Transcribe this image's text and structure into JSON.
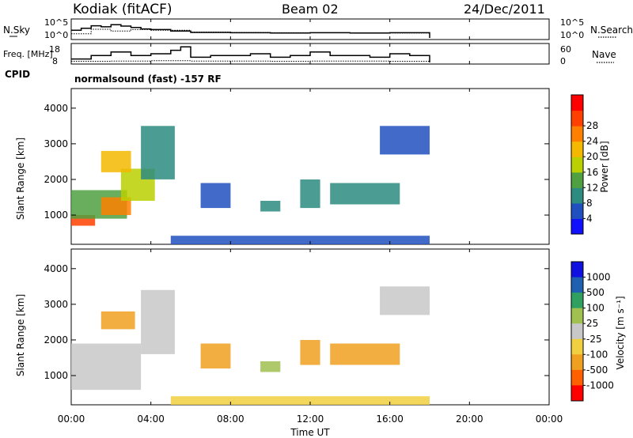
{
  "chart_data": [
    {
      "type": "line",
      "header": {
        "site": "Kodiak (fitACF)",
        "beam": "Beam 02",
        "date": "24/Dec/2011"
      },
      "left_label": "N.Sky",
      "right_label": "N.Search",
      "left_ticks": [
        "10^5",
        "10^0"
      ],
      "right_ticks": [
        "10^5",
        "10^0"
      ],
      "series": [
        {
          "name": "N.Sky",
          "style": "solid",
          "x": [
            0,
            0.5,
            1,
            1.5,
            2,
            2.5,
            3,
            3.5,
            4,
            5,
            6,
            8,
            10,
            12,
            14,
            16,
            18
          ],
          "y": [
            2.2,
            2.8,
            3.5,
            3.2,
            3.8,
            3.4,
            3.0,
            2.6,
            2.4,
            2.0,
            1.6,
            1.5,
            1.4,
            1.5,
            1.4,
            1.5,
            1.4
          ]
        },
        {
          "name": "N.Search",
          "style": "dotted",
          "x": [
            0,
            1,
            2,
            3,
            4,
            6,
            8,
            10,
            12,
            14,
            16,
            18
          ],
          "y": [
            1.2,
            2.5,
            2.0,
            2.4,
            2.2,
            1.7,
            1.6,
            1.5,
            1.5,
            1.4,
            1.4,
            1.3
          ]
        }
      ]
    },
    {
      "type": "line",
      "left_label": "Freq. [MHz]",
      "right_label": "Nave",
      "left_ticks": [
        "18",
        "8"
      ],
      "right_ticks": [
        "60",
        "0"
      ],
      "cpid_label": "CPID",
      "cpid_value": "normalsound (fast) -157 RF",
      "series": [
        {
          "name": "Freq.",
          "style": "solid",
          "x": [
            0,
            1,
            2,
            3,
            4,
            5,
            5.5,
            6,
            7,
            8,
            9,
            10,
            11,
            12,
            13,
            14,
            15,
            16,
            17,
            18
          ],
          "y": [
            10,
            12,
            14,
            12,
            13,
            15,
            17,
            11,
            12,
            12,
            13,
            11,
            12,
            14,
            12,
            12,
            11,
            13,
            12,
            11
          ]
        },
        {
          "name": "Nave",
          "style": "dotted",
          "x": [
            0,
            2,
            4,
            6,
            8,
            10,
            12,
            14,
            16,
            18
          ],
          "y": [
            4,
            5,
            6,
            5,
            5,
            4,
            5,
            5,
            4,
            4
          ]
        }
      ]
    },
    {
      "type": "heatmap",
      "ylabel": "Slant Range [km]",
      "yticks": [
        "1000",
        "2000",
        "3000",
        "4000"
      ],
      "ylim": [
        180,
        4550
      ],
      "xlim": [
        0,
        24
      ],
      "colorbar": {
        "label": "Power [dB]",
        "ticks": [
          "4",
          "8",
          "12",
          "16",
          "20",
          "24",
          "28"
        ],
        "range": [
          0,
          32
        ],
        "colors": [
          "#1010ff",
          "#2050c0",
          "#2c8c80",
          "#4fa040",
          "#bad000",
          "#f4b800",
          "#ff8000",
          "#ff4000",
          "#ff0000"
        ]
      },
      "patches": [
        {
          "x": [
            0,
            1.2
          ],
          "y": [
            700,
            1000
          ],
          "value": 28
        },
        {
          "x": [
            0,
            2.8
          ],
          "y": [
            900,
            1700
          ],
          "value": 14
        },
        {
          "x": [
            1.5,
            3.0
          ],
          "y": [
            1000,
            1500
          ],
          "value": 22
        },
        {
          "x": [
            2.5,
            4.2
          ],
          "y": [
            1400,
            2300
          ],
          "value": 16
        },
        {
          "x": [
            1.5,
            3.0
          ],
          "y": [
            2200,
            2800
          ],
          "value": 18
        },
        {
          "x": [
            3.5,
            5.2
          ],
          "y": [
            2000,
            3500
          ],
          "value": 8
        },
        {
          "x": [
            6.5,
            8.0
          ],
          "y": [
            1200,
            1900
          ],
          "value": 6
        },
        {
          "x": [
            9.5,
            10.5
          ],
          "y": [
            1100,
            1400
          ],
          "value": 8
        },
        {
          "x": [
            11.5,
            12.5
          ],
          "y": [
            1200,
            2000
          ],
          "value": 9
        },
        {
          "x": [
            13.0,
            16.5
          ],
          "y": [
            1300,
            1900
          ],
          "value": 10
        },
        {
          "x": [
            15.5,
            18.0
          ],
          "y": [
            2700,
            3500
          ],
          "value": 6
        },
        {
          "x": [
            5.0,
            18.0
          ],
          "y": [
            180,
            420
          ],
          "value": 6
        }
      ]
    },
    {
      "type": "heatmap",
      "ylabel": "Slant Range [km]",
      "yticks": [
        "1000",
        "2000",
        "3000",
        "4000"
      ],
      "ylim": [
        180,
        4550
      ],
      "xlim": [
        0,
        24
      ],
      "xticks": [
        "00:00",
        "04:00",
        "08:00",
        "12:00",
        "16:00",
        "20:00",
        "00:00"
      ],
      "xlabel": "Time UT",
      "colorbar": {
        "label": "Velocity [m s⁻¹]",
        "ticks": [
          "1000",
          "500",
          "100",
          "25",
          "-25",
          "-100",
          "-500",
          "-1000"
        ],
        "colors": [
          "#1010e0",
          "#2060b0",
          "#30a060",
          "#a0c050",
          "#c8c8c8",
          "#f0d040",
          "#f0a020",
          "#ff6000",
          "#ff0000"
        ]
      },
      "patches": [
        {
          "x": [
            0,
            3.5
          ],
          "y": [
            600,
            1900
          ],
          "value": 0
        },
        {
          "x": [
            1.5,
            3.2
          ],
          "y": [
            2300,
            2800
          ],
          "value": -300
        },
        {
          "x": [
            3.5,
            5.2
          ],
          "y": [
            1600,
            3400
          ],
          "value": 0
        },
        {
          "x": [
            6.5,
            8.0
          ],
          "y": [
            1200,
            1900
          ],
          "value": -200
        },
        {
          "x": [
            9.5,
            10.5
          ],
          "y": [
            1100,
            1400
          ],
          "value": 50
        },
        {
          "x": [
            11.5,
            12.5
          ],
          "y": [
            1300,
            2000
          ],
          "value": -100
        },
        {
          "x": [
            13.0,
            16.5
          ],
          "y": [
            1300,
            1900
          ],
          "value": -150
        },
        {
          "x": [
            15.5,
            18.0
          ],
          "y": [
            2700,
            3500
          ],
          "value": 0
        },
        {
          "x": [
            5.0,
            18.0
          ],
          "y": [
            180,
            420
          ],
          "value": -50
        }
      ]
    }
  ]
}
